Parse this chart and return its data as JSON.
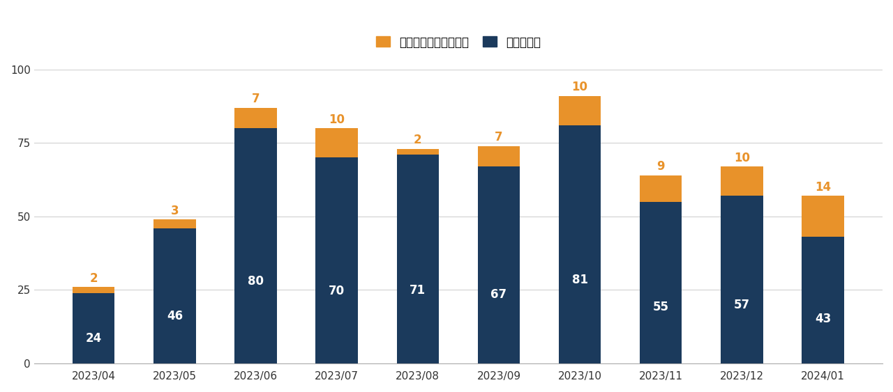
{
  "categories": [
    "2023/04",
    "2023/05",
    "2023/06",
    "2023/07",
    "2023/08",
    "2023/09",
    "2023/10",
    "2023/11",
    "2023/12",
    "2024/01"
  ],
  "individual": [
    24,
    46,
    80,
    70,
    71,
    67,
    81,
    55,
    57,
    43
  ],
  "couple": [
    2,
    3,
    7,
    10,
    2,
    7,
    10,
    9,
    10,
    14
  ],
  "color_individual": "#1b3a5c",
  "color_couple": "#e8922a",
  "background_color": "#ffffff",
  "ylim": [
    0,
    100
  ],
  "yticks": [
    0,
    25,
    50,
    75,
    100
  ],
  "legend_label_couple": "カップル・夫婦（組）",
  "legend_label_individual": "個人（人）",
  "legend_fontsize": 12,
  "tick_fontsize": 11,
  "bar_label_fontsize_individual": 12,
  "bar_label_fontsize_couple": 12,
  "bar_width": 0.52
}
